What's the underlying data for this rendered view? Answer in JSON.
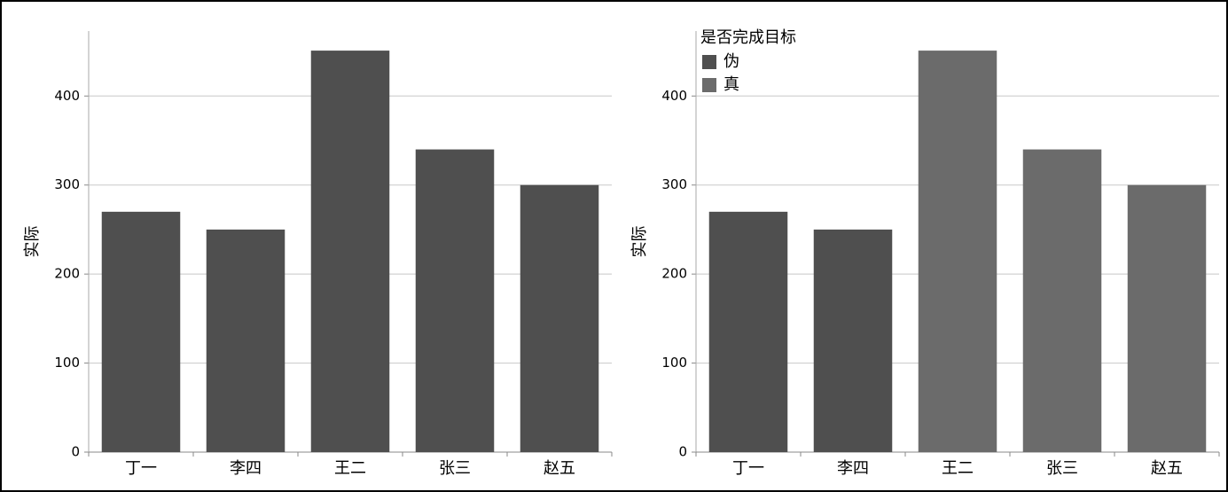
{
  "chart_data": [
    {
      "type": "bar",
      "ylabel": "实际",
      "categories": [
        "丁一",
        "李四",
        "王二",
        "张三",
        "赵五"
      ],
      "values": [
        270,
        250,
        451,
        340,
        300
      ],
      "color": "#4f4f4f",
      "ylim": [
        0,
        473
      ],
      "yticks": [
        0,
        100,
        200,
        300,
        400
      ],
      "grid": true
    },
    {
      "type": "bar",
      "ylabel": "实际",
      "categories": [
        "丁一",
        "李四",
        "王二",
        "张三",
        "赵五"
      ],
      "series": [
        {
          "name": "伪",
          "color": "#4f4f4f",
          "values": [
            270,
            250,
            null,
            null,
            null
          ]
        },
        {
          "name": "真",
          "color": "#6b6b6b",
          "values": [
            null,
            null,
            451,
            340,
            300
          ]
        }
      ],
      "legend_title": "是否完成目标",
      "legend": "top-left",
      "ylim": [
        0,
        473
      ],
      "yticks": [
        0,
        100,
        200,
        300,
        400
      ],
      "grid": true
    }
  ]
}
